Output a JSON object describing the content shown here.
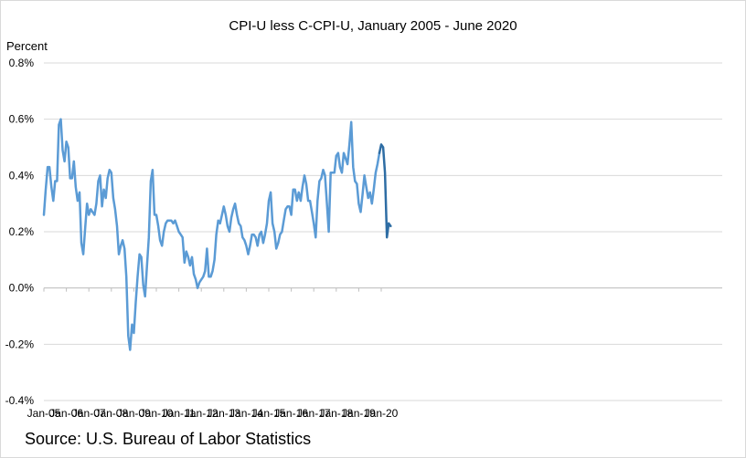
{
  "chart_data": {
    "type": "line",
    "title": "CPI-U less C-CPI-U, January 2005 - June 2020",
    "ylabel": "Percent",
    "xlabel": "",
    "ylim": [
      -0.4,
      0.8
    ],
    "yticks": [
      "0.8%",
      "0.6%",
      "0.4%",
      "0.2%",
      "0.0%",
      "-0.2%",
      "-0.4%"
    ],
    "ytick_values": [
      0.8,
      0.6,
      0.4,
      0.2,
      0.0,
      -0.2,
      -0.4
    ],
    "xticks": [
      "Jan-05",
      "Jan-06",
      "Jan-07",
      "Jan-08",
      "Jan-09",
      "Jan-10",
      "Jan-11",
      "Jan-12",
      "Jan-13",
      "Jan-14",
      "Jan-15",
      "Jan-16",
      "Jan-17",
      "Jan-18",
      "Jan-19",
      "Jan-20"
    ],
    "grid": "horizontal",
    "line_color": "#5b9bd5",
    "highlight_color": "#2e6da4",
    "highlight_from": "2019-12",
    "series": [
      {
        "x": [
          "2005-01",
          "2005-02",
          "2005-03",
          "2005-04",
          "2005-05",
          "2005-06",
          "2005-07",
          "2005-08",
          "2005-09",
          "2005-10",
          "2005-11",
          "2005-12",
          "2006-01",
          "2006-02",
          "2006-03",
          "2006-04",
          "2006-05",
          "2006-06",
          "2006-07",
          "2006-08",
          "2006-09",
          "2006-10",
          "2006-11",
          "2006-12",
          "2007-01",
          "2007-02",
          "2007-03",
          "2007-04",
          "2007-05",
          "2007-06",
          "2007-07",
          "2007-08",
          "2007-09",
          "2007-10",
          "2007-11",
          "2007-12",
          "2008-01",
          "2008-02",
          "2008-03",
          "2008-04",
          "2008-05",
          "2008-06",
          "2008-07",
          "2008-08",
          "2008-09",
          "2008-10",
          "2008-11",
          "2008-12",
          "2009-01",
          "2009-02",
          "2009-03",
          "2009-04",
          "2009-05",
          "2009-06",
          "2009-07",
          "2009-08",
          "2009-09",
          "2009-10",
          "2009-11",
          "2009-12",
          "2010-01",
          "2010-02",
          "2010-03",
          "2010-04",
          "2010-05",
          "2010-06",
          "2010-07",
          "2010-08",
          "2010-09",
          "2010-10",
          "2010-11",
          "2010-12",
          "2011-01",
          "2011-02",
          "2011-03",
          "2011-04",
          "2011-05",
          "2011-06",
          "2011-07",
          "2011-08",
          "2011-09",
          "2011-10",
          "2011-11",
          "2011-12",
          "2012-01",
          "2012-02",
          "2012-03",
          "2012-04",
          "2012-05",
          "2012-06",
          "2012-07",
          "2012-08",
          "2012-09",
          "2012-10",
          "2012-11",
          "2012-12",
          "2013-01",
          "2013-02",
          "2013-03",
          "2013-04",
          "2013-05",
          "2013-06",
          "2013-07",
          "2013-08",
          "2013-09",
          "2013-10",
          "2013-11",
          "2013-12",
          "2014-01",
          "2014-02",
          "2014-03",
          "2014-04",
          "2014-05",
          "2014-06",
          "2014-07",
          "2014-08",
          "2014-09",
          "2014-10",
          "2014-11",
          "2014-12",
          "2015-01",
          "2015-02",
          "2015-03",
          "2015-04",
          "2015-05",
          "2015-06",
          "2015-07",
          "2015-08",
          "2015-09",
          "2015-10",
          "2015-11",
          "2015-12",
          "2016-01",
          "2016-02",
          "2016-03",
          "2016-04",
          "2016-05",
          "2016-06",
          "2016-07",
          "2016-08",
          "2016-09",
          "2016-10",
          "2016-11",
          "2016-12",
          "2017-01",
          "2017-02",
          "2017-03",
          "2017-04",
          "2017-05",
          "2017-06",
          "2017-07",
          "2017-08",
          "2017-09",
          "2017-10",
          "2017-11",
          "2017-12",
          "2018-01",
          "2018-02",
          "2018-03",
          "2018-04",
          "2018-05",
          "2018-06",
          "2018-07",
          "2018-08",
          "2018-09",
          "2018-10",
          "2018-11",
          "2018-12",
          "2019-01",
          "2019-02",
          "2019-03",
          "2019-04",
          "2019-05",
          "2019-06",
          "2019-07",
          "2019-08",
          "2019-09",
          "2019-10",
          "2019-11",
          "2019-12",
          "2020-01",
          "2020-02",
          "2020-03",
          "2020-04",
          "2020-05",
          "2020-06"
        ],
        "values": [
          0.26,
          0.35,
          0.43,
          0.43,
          0.36,
          0.31,
          0.38,
          0.38,
          0.58,
          0.6,
          0.49,
          0.45,
          0.52,
          0.5,
          0.39,
          0.39,
          0.45,
          0.36,
          0.31,
          0.34,
          0.16,
          0.12,
          0.21,
          0.3,
          0.26,
          0.28,
          0.27,
          0.26,
          0.3,
          0.38,
          0.4,
          0.29,
          0.35,
          0.32,
          0.39,
          0.42,
          0.41,
          0.32,
          0.28,
          0.22,
          0.12,
          0.15,
          0.17,
          0.14,
          0.04,
          -0.17,
          -0.22,
          -0.13,
          -0.16,
          -0.05,
          0.04,
          0.12,
          0.11,
          0.01,
          -0.03,
          0.08,
          0.18,
          0.38,
          0.42,
          0.26,
          0.26,
          0.22,
          0.17,
          0.15,
          0.2,
          0.23,
          0.24,
          0.24,
          0.24,
          0.23,
          0.24,
          0.22,
          0.2,
          0.19,
          0.18,
          0.09,
          0.13,
          0.11,
          0.08,
          0.11,
          0.05,
          0.03,
          0.0,
          0.02,
          0.03,
          0.04,
          0.06,
          0.14,
          0.04,
          0.04,
          0.06,
          0.1,
          0.19,
          0.24,
          0.23,
          0.26,
          0.29,
          0.26,
          0.22,
          0.2,
          0.25,
          0.28,
          0.3,
          0.26,
          0.23,
          0.22,
          0.18,
          0.17,
          0.15,
          0.12,
          0.15,
          0.19,
          0.19,
          0.18,
          0.15,
          0.19,
          0.2,
          0.16,
          0.19,
          0.23,
          0.31,
          0.34,
          0.23,
          0.2,
          0.14,
          0.16,
          0.19,
          0.2,
          0.24,
          0.28,
          0.29,
          0.29,
          0.26,
          0.35,
          0.35,
          0.31,
          0.34,
          0.31,
          0.36,
          0.4,
          0.37,
          0.31,
          0.31,
          0.27,
          0.23,
          0.18,
          0.31,
          0.38,
          0.39,
          0.42,
          0.4,
          0.3,
          0.2,
          0.41,
          0.41,
          0.41,
          0.47,
          0.48,
          0.43,
          0.41,
          0.48,
          0.46,
          0.44,
          0.51,
          0.59,
          0.43,
          0.38,
          0.37,
          0.3,
          0.27,
          0.33,
          0.4,
          0.36,
          0.32,
          0.34,
          0.3,
          0.35,
          0.41,
          0.44,
          0.48,
          0.51,
          0.5,
          0.41,
          0.18,
          0.23,
          0.22
        ]
      }
    ]
  },
  "source": "Source: U.S. Bureau of Labor Statistics"
}
